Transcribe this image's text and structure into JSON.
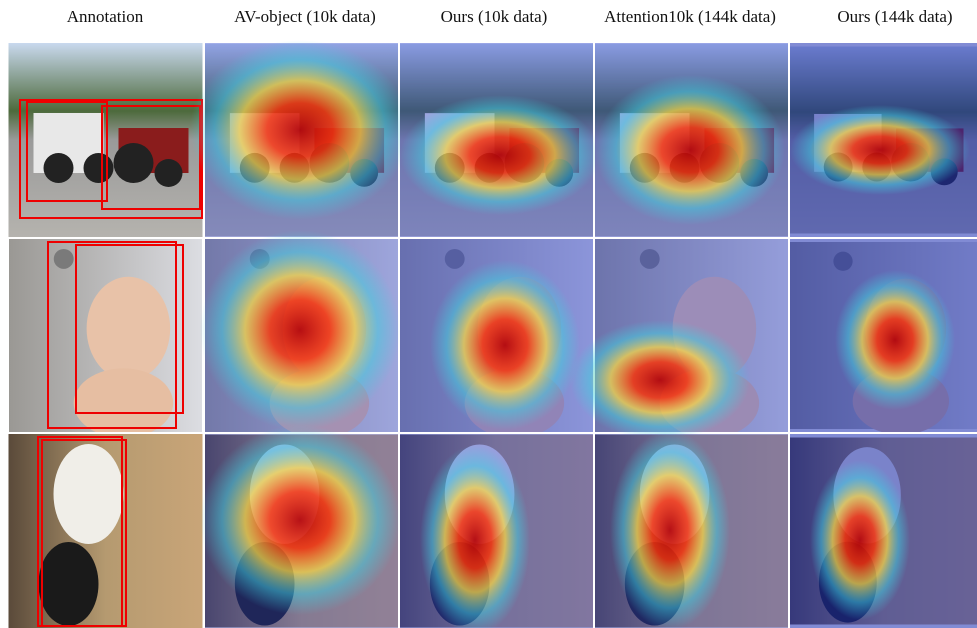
{
  "columns": [
    "Annotation",
    "AV-object (10k data)",
    "Ours (10k data)",
    "Attention10k (144k data)",
    "Ours (144k data)"
  ]
}
